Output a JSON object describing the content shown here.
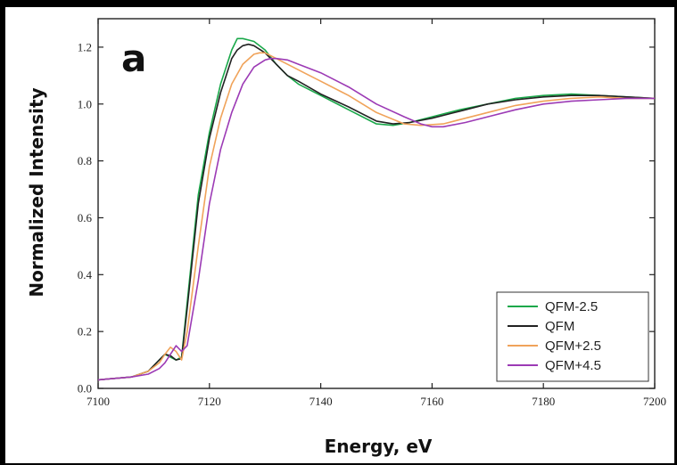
{
  "panel_label": "a",
  "colors": {
    "QFM-2.5": "#1aa84a",
    "QFM": "#222222",
    "QFM+2.5": "#f0a35a",
    "QFM+4.5": "#9c3ab5"
  },
  "chart_data": {
    "type": "line",
    "title": "",
    "xlabel": "Energy, eV",
    "ylabel": "Normalized Intensity",
    "xlim": [
      7100,
      7200
    ],
    "ylim": [
      0.0,
      1.3
    ],
    "xticks": [
      "7100",
      "7120",
      "7140",
      "7160",
      "7180",
      "7200"
    ],
    "yticks": [
      "0.0",
      "0.2",
      "0.4",
      "0.6",
      "0.8",
      "1.0",
      "1.2"
    ],
    "legend_position": "bottom-right",
    "grid": false,
    "series": [
      {
        "name": "QFM-2.5",
        "x": [
          7100,
          7106,
          7109,
          7111,
          7112,
          7113,
          7114,
          7115,
          7116,
          7118,
          7120,
          7122,
          7124,
          7125,
          7126,
          7127,
          7128,
          7130,
          7132,
          7134,
          7136,
          7140,
          7145,
          7150,
          7153,
          7156,
          7160,
          7165,
          7170,
          7175,
          7180,
          7185,
          7190,
          7195,
          7200
        ],
        "y": [
          0.03,
          0.04,
          0.06,
          0.1,
          0.12,
          0.11,
          0.1,
          0.11,
          0.3,
          0.68,
          0.9,
          1.07,
          1.19,
          1.23,
          1.23,
          1.225,
          1.22,
          1.19,
          1.14,
          1.1,
          1.07,
          1.03,
          0.98,
          0.93,
          0.925,
          0.935,
          0.955,
          0.98,
          1.0,
          1.02,
          1.03,
          1.035,
          1.03,
          1.025,
          1.02
        ]
      },
      {
        "name": "QFM",
        "x": [
          7100,
          7106,
          7109,
          7111,
          7112,
          7113,
          7114,
          7115,
          7116,
          7118,
          7120,
          7122,
          7124,
          7125,
          7126,
          7127,
          7128,
          7130,
          7132,
          7134,
          7136,
          7140,
          7145,
          7150,
          7153,
          7156,
          7160,
          7165,
          7170,
          7175,
          7180,
          7185,
          7190,
          7195,
          7200
        ],
        "y": [
          0.03,
          0.04,
          0.06,
          0.1,
          0.12,
          0.115,
          0.1,
          0.105,
          0.28,
          0.65,
          0.88,
          1.04,
          1.16,
          1.19,
          1.205,
          1.21,
          1.205,
          1.18,
          1.14,
          1.1,
          1.08,
          1.035,
          0.99,
          0.94,
          0.93,
          0.935,
          0.95,
          0.975,
          1.0,
          1.015,
          1.025,
          1.03,
          1.03,
          1.025,
          1.02
        ]
      },
      {
        "name": "QFM+2.5",
        "x": [
          7100,
          7106,
          7109,
          7111,
          7112,
          7113,
          7114,
          7115,
          7116,
          7118,
          7120,
          7122,
          7124,
          7126,
          7128,
          7129,
          7130,
          7132,
          7134,
          7137,
          7140,
          7145,
          7150,
          7155,
          7158,
          7162,
          7166,
          7170,
          7175,
          7180,
          7185,
          7190,
          7195,
          7200
        ],
        "y": [
          0.03,
          0.04,
          0.06,
          0.09,
          0.12,
          0.145,
          0.13,
          0.1,
          0.2,
          0.5,
          0.78,
          0.95,
          1.07,
          1.14,
          1.175,
          1.18,
          1.18,
          1.16,
          1.14,
          1.11,
          1.08,
          1.03,
          0.97,
          0.93,
          0.925,
          0.93,
          0.95,
          0.97,
          0.995,
          1.01,
          1.02,
          1.025,
          1.02,
          1.02
        ]
      },
      {
        "name": "QFM+4.5",
        "x": [
          7100,
          7106,
          7109,
          7111,
          7112,
          7113,
          7114,
          7115,
          7116,
          7118,
          7120,
          7122,
          7124,
          7126,
          7128,
          7130,
          7131,
          7132,
          7134,
          7136,
          7140,
          7145,
          7150,
          7155,
          7158,
          7160,
          7162,
          7166,
          7170,
          7175,
          7180,
          7185,
          7190,
          7195,
          7200
        ],
        "y": [
          0.03,
          0.04,
          0.05,
          0.07,
          0.09,
          0.12,
          0.15,
          0.13,
          0.15,
          0.38,
          0.65,
          0.84,
          0.97,
          1.07,
          1.13,
          1.155,
          1.16,
          1.16,
          1.155,
          1.14,
          1.11,
          1.06,
          1.0,
          0.955,
          0.93,
          0.92,
          0.92,
          0.935,
          0.955,
          0.98,
          1.0,
          1.01,
          1.015,
          1.02,
          1.02
        ]
      }
    ]
  }
}
